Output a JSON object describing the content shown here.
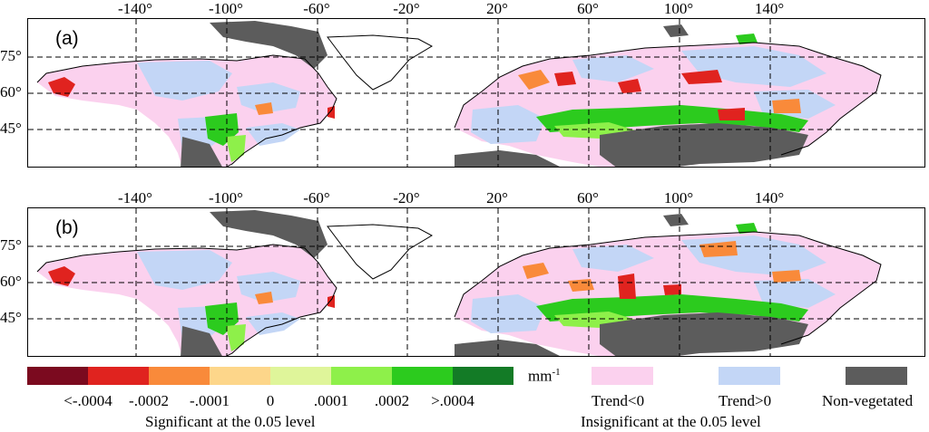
{
  "panels": [
    {
      "id": "a",
      "label": "(a)"
    },
    {
      "id": "b",
      "label": "(b)"
    }
  ],
  "longitude_labels": [
    "-140°",
    "-100°",
    "-60°",
    "-20°",
    "20°",
    "60°",
    "100°",
    "140°"
  ],
  "latitude_labels": [
    "75°",
    "60°",
    "45°"
  ],
  "legend": {
    "significant_colors": [
      "#7b0a1f",
      "#e0231f",
      "#f98a3a",
      "#fdd68a",
      "#dff59a",
      "#8ef04a",
      "#2ccb1e",
      "#137b26"
    ],
    "significant_ticks": [
      "<-.0004",
      "-.0002",
      "-.0001",
      "0",
      ".0001",
      ".0002",
      ">.0004"
    ],
    "unit": "mm",
    "unit_exp": "-1",
    "significant_caption": "Significant  at the 0.05 level",
    "insignificant": [
      {
        "label": "Trend<0",
        "color": "#fbd1ee"
      },
      {
        "label": "Trend>0",
        "color": "#c3d6f6"
      },
      {
        "label": "Non-vegetated",
        "color": "#5c5c5c"
      }
    ],
    "insignificant_caption": "Insignificant at the 0.05 level"
  }
}
